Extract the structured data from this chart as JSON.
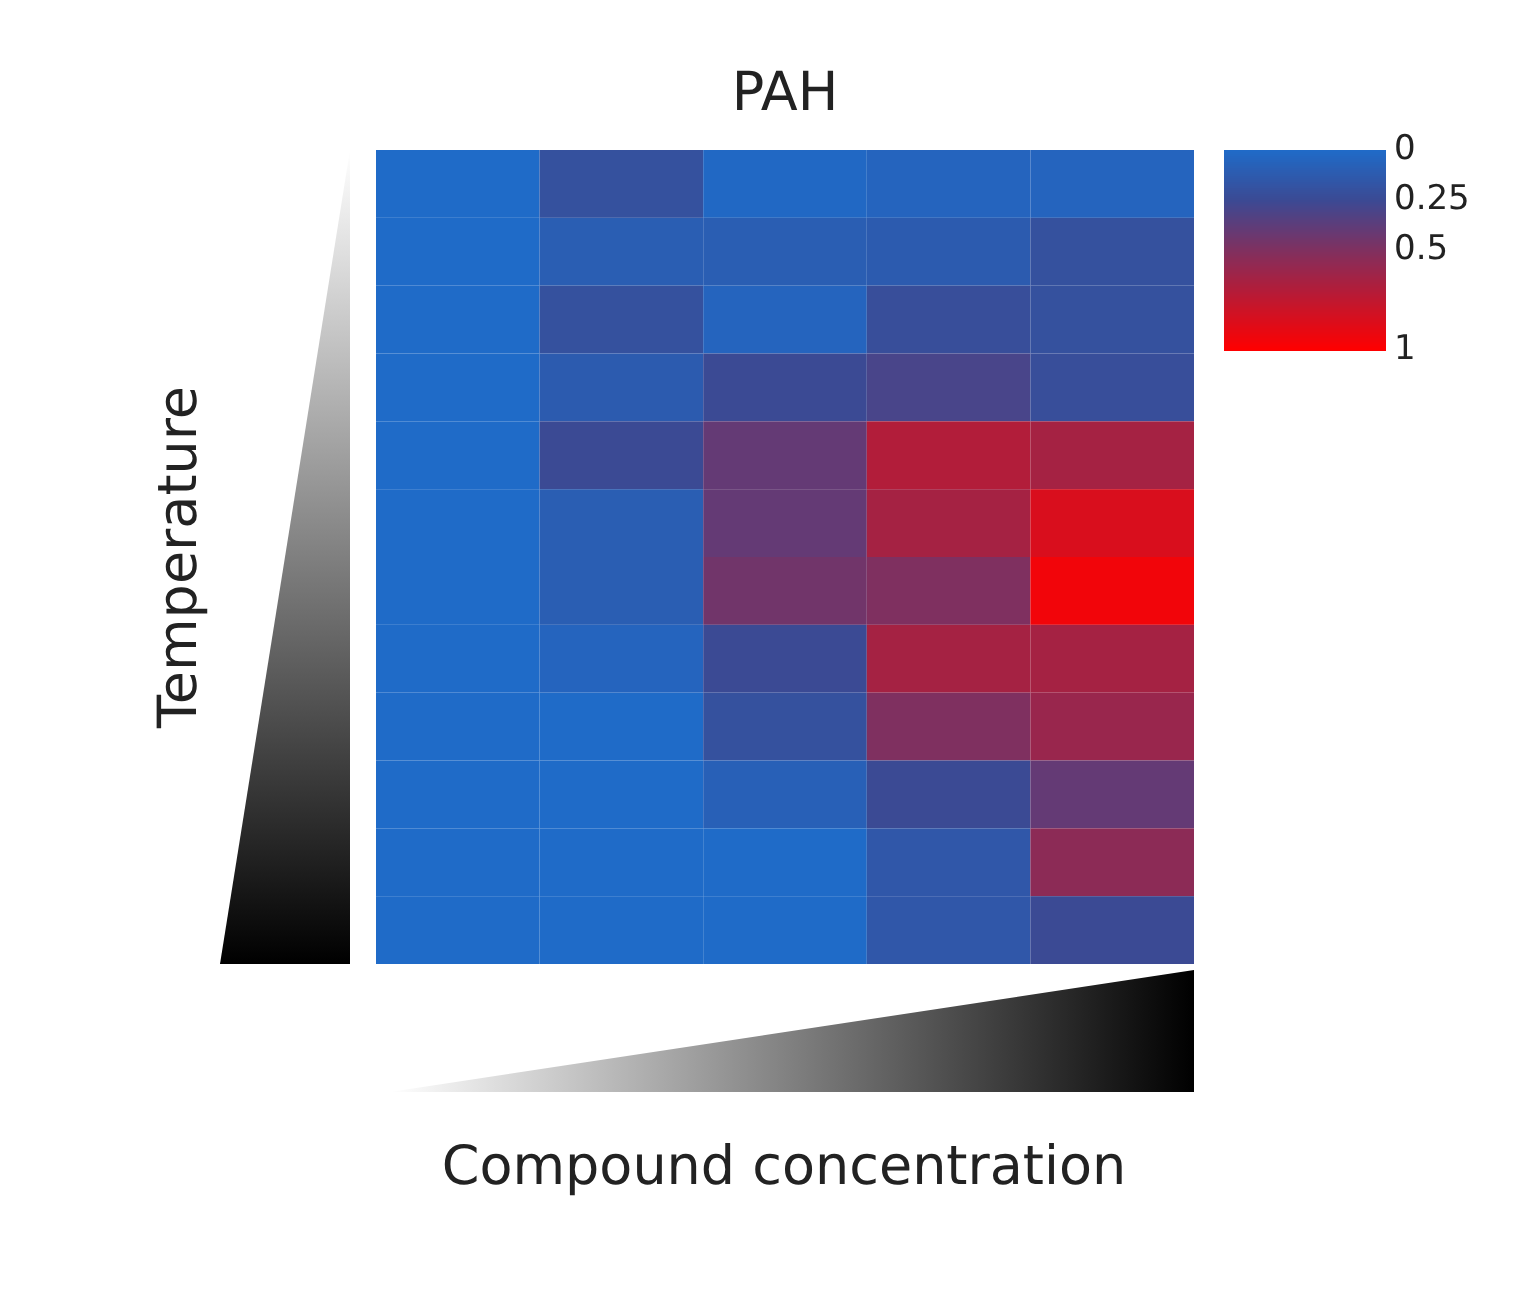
{
  "chart_data": {
    "type": "heatmap",
    "title": "PAH",
    "xlabel": "Compound concentration",
    "ylabel": "Temperature",
    "categories": [
      null,
      null,
      null,
      null,
      null
    ],
    "y_categories": [
      null,
      null,
      null,
      null,
      null,
      null,
      null,
      null,
      null,
      null,
      null,
      null
    ],
    "cells": [
      [
        0,
        0.2,
        0.02,
        0.05,
        0.05
      ],
      [
        0,
        0.1,
        0.1,
        0.12,
        0.2
      ],
      [
        0,
        0.2,
        0.05,
        0.22,
        0.2
      ],
      [
        0,
        0.12,
        0.25,
        0.3,
        0.22
      ],
      [
        0,
        0.25,
        0.4,
        0.7,
        0.65
      ],
      [
        0,
        0.1,
        0.4,
        0.65,
        0.85
      ],
      [
        0,
        0.1,
        0.45,
        0.5,
        0.95
      ],
      [
        0,
        0.05,
        0.25,
        0.65,
        0.65
      ],
      [
        0,
        0,
        0.2,
        0.5,
        0.6
      ],
      [
        0,
        0,
        0.08,
        0.25,
        0.4
      ],
      [
        0,
        0,
        0,
        0.15,
        0.55
      ],
      [
        0,
        0,
        0,
        0.15,
        0.25
      ]
    ],
    "clim": [
      0,
      1
    ],
    "cticks": [
      0,
      0.25,
      0.5,
      1
    ],
    "colors": [
      "#1f6bc8",
      "#3b4a94",
      "#7f3060",
      "#ff0000"
    ]
  }
}
